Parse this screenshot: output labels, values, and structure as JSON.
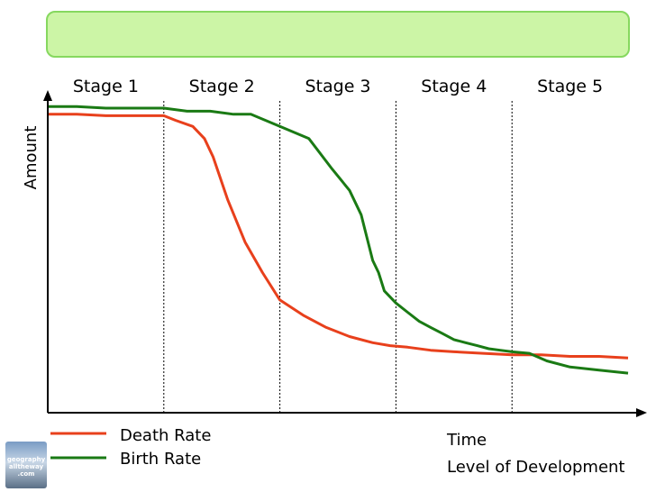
{
  "chart_data": {
    "type": "line",
    "title": "",
    "xlabel": "Time",
    "xlabel_secondary": "Level of Development",
    "ylabel": "Amount",
    "xlim": [
      0,
      100
    ],
    "ylim": [
      0,
      100
    ],
    "stages": [
      "Stage 1",
      "Stage 2",
      "Stage 3",
      "Stage 4",
      "Stage 5"
    ],
    "stage_boundaries": [
      20,
      40,
      60,
      80
    ],
    "legend_position": "bottom-left",
    "series": [
      {
        "name": "Death Rate",
        "color": "#e8401c",
        "x": [
          0,
          5,
          10,
          15,
          20,
          22,
          25,
          27,
          28.5,
          31,
          34,
          37,
          40,
          44,
          48,
          52,
          56,
          59,
          62,
          66,
          70,
          75,
          80,
          85,
          90,
          95,
          100
        ],
        "y": [
          98,
          98,
          97.5,
          97.5,
          97.5,
          96,
          94,
          90,
          84,
          70,
          56,
          46,
          37,
          32,
          28,
          25,
          23,
          22,
          21.5,
          20.5,
          20,
          19.5,
          19,
          19,
          18.5,
          18.5,
          18
        ]
      },
      {
        "name": "Birth Rate",
        "color": "#1a7a14",
        "x": [
          0,
          5,
          10,
          15,
          20,
          24,
          28,
          32,
          35,
          40,
          45,
          49,
          52,
          54,
          56,
          57,
          58,
          60,
          62,
          64,
          66,
          68,
          70,
          72,
          74,
          76,
          78,
          80,
          83,
          86,
          90,
          95,
          100
        ],
        "y": [
          100.5,
          100.5,
          100,
          100,
          100,
          99,
          99,
          98,
          98,
          94,
          90,
          80,
          73,
          65,
          50,
          46,
          40,
          36,
          33,
          30,
          28,
          26,
          24,
          23,
          22,
          21,
          20.5,
          20,
          19.5,
          17,
          15,
          14,
          13
        ]
      }
    ]
  }
}
